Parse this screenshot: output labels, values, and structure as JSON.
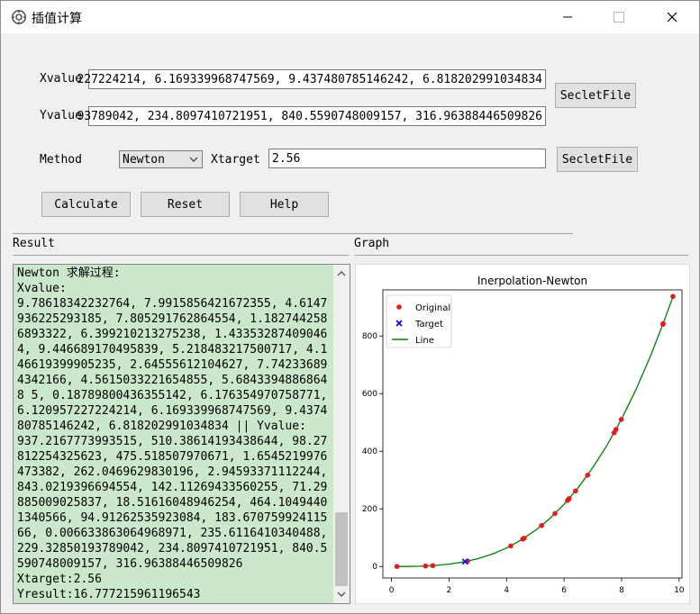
{
  "window": {
    "title": "插值计算"
  },
  "form": {
    "xvalue_label": "Xvalue",
    "xvalue_value": "227224214, 6.169339968747569, 9.437480785146242, 6.818202991034834",
    "yvalue_label": "Yvalue",
    "yvalue_value": "93789042, 234.8097410721951, 840.5590748009157, 316.96388446509826",
    "select_file_label": "SecletFile",
    "method_label": "Method",
    "method_value": "Newton",
    "xtarget_label": "Xtarget",
    "xtarget_value": "2.56",
    "calculate_label": "Calculate",
    "reset_label": "Reset",
    "help_label": "Help"
  },
  "panels": {
    "result_label": "Result",
    "graph_label": "Graph"
  },
  "result": {
    "text": "Newton 求解过程:\nXvalue:\n9.78618342232764, 7.9915856421672355, 4.6147936225293185, 7.805291762864554, 1.1827442586893322, 6.399210213275238, 1.43353287409046 4, 9.446689170495839, 5.218483217500717, 4.146619399905235, 2.64555612104627, 7.742336894342166, 4.5615033221654855, 5.68433948868648 5, 0.18789800436355142, 6.176354970758771, 6.120957227224214, 6.169339968747569, 9.437480785146242, 6.818202991034834 || Yvalue:\n937.2167773993515, 510.38614193438644, 98.27812254325623, 475.518507970671, 1.6545219976473382, 262.0469629830196, 2.94593371112244, 843.0219396694554, 142.11269433560255, 71.29885009025837, 18.51616048946254, 464.10494401340566, 94.91262535923084, 183.67075992411566, 0.006633863064968971, 235.6116410340488, 229.32850193789042, 234.8097410721951, 840.5590748009157, 316.96388446509826\nXtarget:2.56\nYresult:16.777215961196543"
  },
  "chart_data": {
    "type": "scatter",
    "title": "Inerpolation-Newton",
    "legend": [
      "Original",
      "Target",
      "Line"
    ],
    "legend_position": "top-left",
    "xlim": [
      -0.3,
      10.1
    ],
    "ylim": [
      -40,
      960
    ],
    "xticks": [
      0,
      2,
      4,
      6,
      8,
      10
    ],
    "yticks": [
      0,
      200,
      400,
      600,
      800
    ],
    "grid": false,
    "colors": {
      "original": "#e41a1c",
      "target": "#0000ff",
      "line": "#008000"
    },
    "original": {
      "x": [
        9.78618342232764,
        7.9915856421672355,
        4.6147936225293185,
        7.805291762864554,
        1.1827442586893322,
        6.399210213275238,
        1.433532874090464,
        9.446689170495839,
        5.218483217500717,
        4.146619399905235,
        2.64555612104627,
        7.742336894342166,
        4.5615033221654855,
        5.684339488686485,
        0.18789800436355142,
        6.176354970758771,
        6.120957227224214,
        6.169339968747569,
        9.437480785146242,
        6.818202991034834
      ],
      "y": [
        937.2167773993515,
        510.38614193438644,
        98.27812254325623,
        475.518507970671,
        1.6545219976473382,
        262.0469629830196,
        2.94593371112244,
        843.0219396694554,
        142.11269433560255,
        71.29885009025837,
        18.51616048946254,
        464.1049440134057,
        94.91262535923084,
        183.67075992411566,
        0.006633863064968971,
        235.6116410340488,
        229.32850193789042,
        234.8097410721951,
        840.5590748009157,
        316.96388446509826
      ]
    },
    "target": {
      "x": [
        2.56
      ],
      "y": [
        16.777215961196543
      ]
    },
    "line": {
      "x": [
        0.19,
        0.5,
        1,
        1.5,
        2,
        2.5,
        3,
        3.5,
        4,
        4.5,
        5,
        5.5,
        6,
        6.5,
        7,
        7.5,
        8,
        8.5,
        9,
        9.5,
        9.79
      ],
      "y": [
        0.007,
        0.125,
        1,
        3.375,
        8,
        15.63,
        27,
        42.88,
        64,
        91.13,
        125,
        166.4,
        216,
        274.6,
        343,
        421.9,
        512,
        614.1,
        729,
        857.4,
        937.2
      ]
    }
  }
}
